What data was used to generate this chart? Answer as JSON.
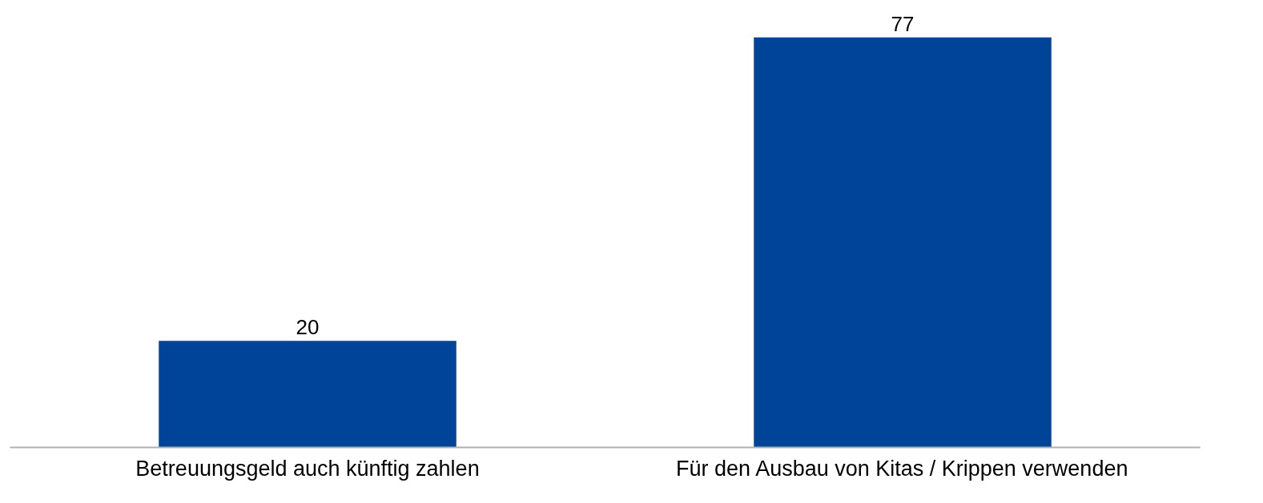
{
  "chart_data": {
    "type": "bar",
    "categories": [
      "Betreuungsgeld auch künftig zahlen",
      "Für den Ausbau von Kitas / Krippen verwenden"
    ],
    "values": [
      20,
      77
    ],
    "color": "#00449a",
    "data_labels": true,
    "tick_labels": "x"
  }
}
